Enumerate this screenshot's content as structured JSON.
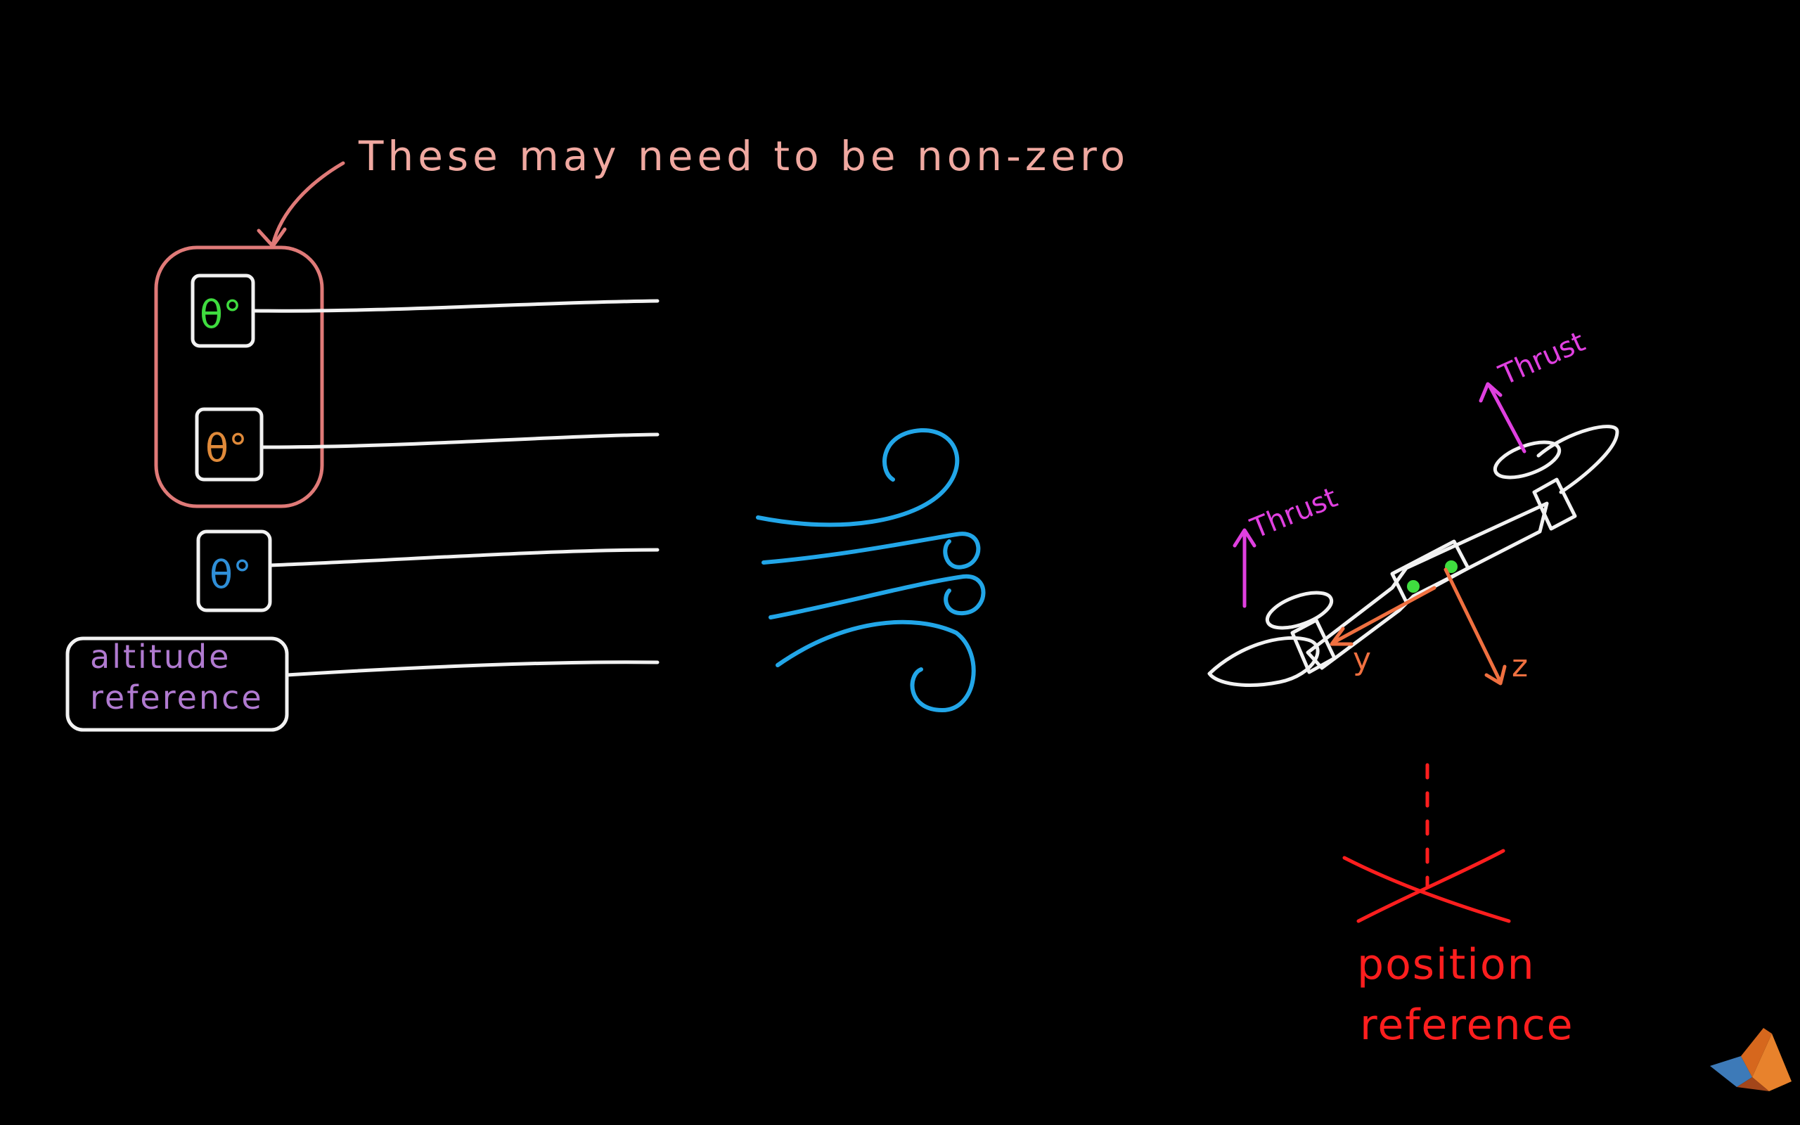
{
  "annotation": {
    "text": "These may need to be non-zero",
    "color": "#f0a8a0"
  },
  "inputs": [
    {
      "symbol": "θ°",
      "color": "#3fdc3f"
    },
    {
      "symbol": "θ°",
      "color": "#e08a3a"
    },
    {
      "symbol": "θ°",
      "color": "#2f8fd8"
    }
  ],
  "altitude_reference": {
    "line1": "altitude",
    "line2": "reference",
    "color": "#b07ad0"
  },
  "drone": {
    "thrust_label_left": "Thrust",
    "thrust_label_right": "Thrust",
    "thrust_color": "#e040e0",
    "axis_y": "y",
    "axis_z": "z",
    "axis_color": "#f07040",
    "sensor_color": "#3fdc3f"
  },
  "wind": {
    "color": "#22a6e8"
  },
  "position_reference": {
    "line1": "position",
    "line2": "reference",
    "color": "#ff1e1e"
  },
  "colors": {
    "background": "#000000",
    "chalk_white": "#f2f2f2",
    "bracket_pink": "#e07a78"
  },
  "logo": {
    "icon": "matlab-membrane-icon"
  }
}
